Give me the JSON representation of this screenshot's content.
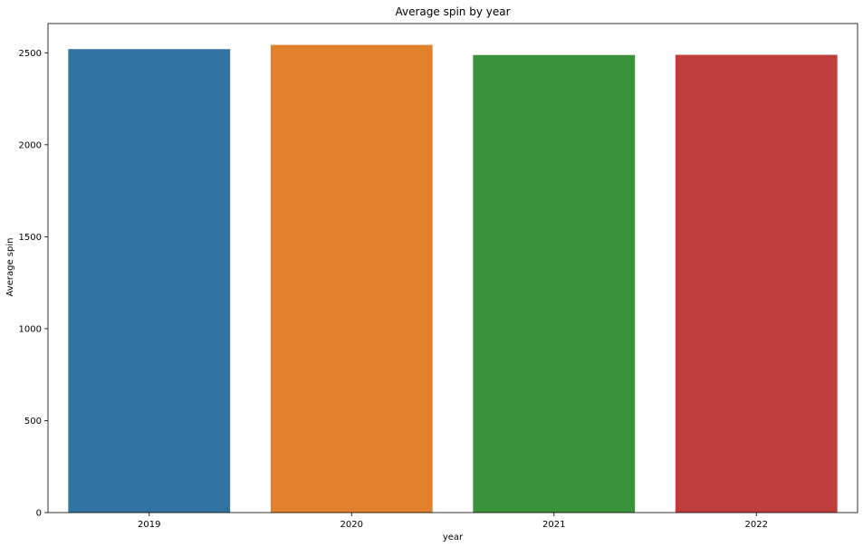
{
  "chart_data": {
    "type": "bar",
    "title": "Average spin by year",
    "xlabel": "year",
    "ylabel": "Average spin",
    "categories": [
      "2019",
      "2020",
      "2021",
      "2022"
    ],
    "values": [
      2520,
      2543,
      2488,
      2489
    ],
    "colors": [
      "#3274a1",
      "#e1812c",
      "#3a923a",
      "#c03d3e"
    ],
    "ylim": [
      0,
      2659
    ],
    "yticks": [
      0,
      500,
      1000,
      1500,
      2000,
      2500
    ],
    "grid": false,
    "legend": "none"
  }
}
